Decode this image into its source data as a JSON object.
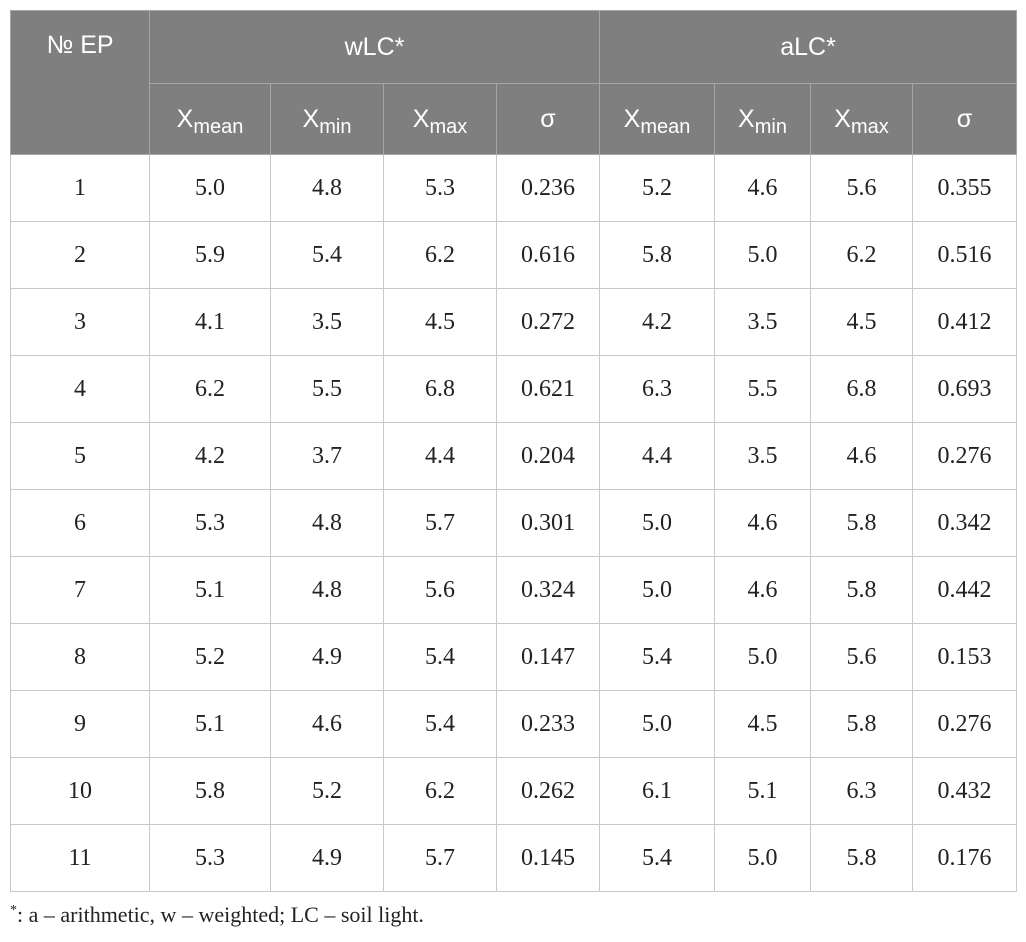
{
  "table": {
    "header": {
      "ep": "№ EP",
      "groups": [
        "wLC*",
        "aLC*"
      ],
      "stats": [
        {
          "main": "X",
          "sub": "mean"
        },
        {
          "main": "X",
          "sub": "min"
        },
        {
          "main": "X",
          "sub": "max"
        },
        {
          "main": "σ",
          "sub": ""
        }
      ]
    },
    "rows": [
      [
        "1",
        "5.0",
        "4.8",
        "5.3",
        "0.236",
        "5.2",
        "4.6",
        "5.6",
        "0.355"
      ],
      [
        "2",
        "5.9",
        "5.4",
        "6.2",
        "0.616",
        "5.8",
        "5.0",
        "6.2",
        "0.516"
      ],
      [
        "3",
        "4.1",
        "3.5",
        "4.5",
        "0.272",
        "4.2",
        "3.5",
        "4.5",
        "0.412"
      ],
      [
        "4",
        "6.2",
        "5.5",
        "6.8",
        "0.621",
        "6.3",
        "5.5",
        "6.8",
        "0.693"
      ],
      [
        "5",
        "4.2",
        "3.7",
        "4.4",
        "0.204",
        "4.4",
        "3.5",
        "4.6",
        "0.276"
      ],
      [
        "6",
        "5.3",
        "4.8",
        "5.7",
        "0.301",
        "5.0",
        "4.6",
        "5.8",
        "0.342"
      ],
      [
        "7",
        "5.1",
        "4.8",
        "5.6",
        "0.324",
        "5.0",
        "4.6",
        "5.8",
        "0.442"
      ],
      [
        "8",
        "5.2",
        "4.9",
        "5.4",
        "0.147",
        "5.4",
        "5.0",
        "5.6",
        "0.153"
      ],
      [
        "9",
        "5.1",
        "4.6",
        "5.4",
        "0.233",
        "5.0",
        "4.5",
        "5.8",
        "0.276"
      ],
      [
        "10",
        "5.8",
        "5.2",
        "6.2",
        "0.262",
        "6.1",
        "5.1",
        "6.3",
        "0.432"
      ],
      [
        "11",
        "5.3",
        "4.9",
        "5.7",
        "0.145",
        "5.4",
        "5.0",
        "5.8",
        "0.176"
      ]
    ]
  },
  "footnote": {
    "marker": "*",
    "text": ": a – arithmetic, w – weighted; LC – soil light."
  }
}
